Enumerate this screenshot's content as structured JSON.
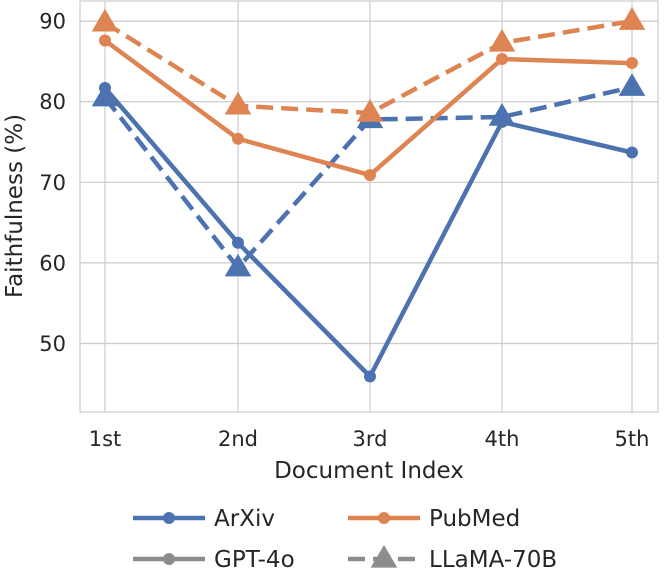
{
  "chart_data": {
    "type": "line",
    "xlabel": "Document Index",
    "ylabel": "Faithfulness (%)",
    "categories": [
      "1st",
      "2nd",
      "3rd",
      "4th",
      "5th"
    ],
    "yticks": [
      50,
      60,
      70,
      80,
      90
    ],
    "ylim": [
      41.5,
      92.5
    ],
    "grid": true,
    "legend_position": "bottom",
    "series": [
      {
        "dataset": "ArXiv",
        "model": "GPT-4o",
        "color": "#4c72b0",
        "marker": "circle",
        "linestyle": "solid",
        "values": [
          81.7,
          62.5,
          45.9,
          77.5,
          73.7
        ]
      },
      {
        "dataset": "ArXiv",
        "model": "LLaMA-70B",
        "color": "#4c72b0",
        "marker": "triangle",
        "linestyle": "dashed",
        "values": [
          80.5,
          59.4,
          77.8,
          78.1,
          81.8
        ]
      },
      {
        "dataset": "PubMed",
        "model": "GPT-4o",
        "color": "#dd8452",
        "marker": "circle",
        "linestyle": "solid",
        "values": [
          87.6,
          75.4,
          70.9,
          85.3,
          84.8
        ]
      },
      {
        "dataset": "PubMed",
        "model": "LLaMA-70B",
        "color": "#dd8452",
        "marker": "triangle",
        "linestyle": "dashed",
        "values": [
          89.8,
          79.5,
          78.6,
          87.3,
          90.0
        ]
      }
    ],
    "legend": [
      {
        "label": "ArXiv",
        "color": "#4c72b0",
        "marker": "circle",
        "linestyle": "solid"
      },
      {
        "label": "PubMed",
        "color": "#dd8452",
        "marker": "circle",
        "linestyle": "solid"
      },
      {
        "label": "GPT-4o",
        "color": "#8c8c8c",
        "marker": "circle",
        "linestyle": "solid"
      },
      {
        "label": "LLaMA-70B",
        "color": "#8c8c8c",
        "marker": "triangle",
        "linestyle": "dashed"
      }
    ]
  }
}
